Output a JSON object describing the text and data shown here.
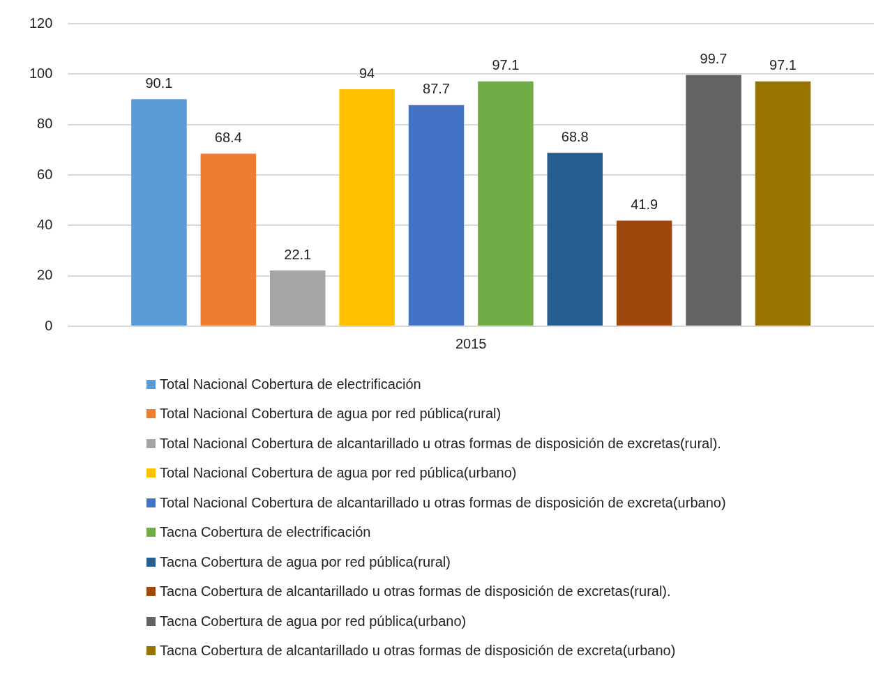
{
  "chart_data": {
    "type": "bar",
    "categories": [
      "2015"
    ],
    "series": [
      {
        "name": "Total Nacional Cobertura de electrificación",
        "color": "#5b9bd5",
        "values": [
          90.1
        ]
      },
      {
        "name": "Total Nacional Cobertura de agua por red pública(rural)",
        "color": "#ed7d31",
        "values": [
          68.4
        ]
      },
      {
        "name": "Total Nacional Cobertura de alcantarillado u otras formas de disposición de excretas(rural).",
        "color": "#a5a5a5",
        "values": [
          22.1
        ]
      },
      {
        "name": "Total Nacional Cobertura de agua por red pública(urbano)",
        "color": "#ffc000",
        "values": [
          94
        ]
      },
      {
        "name": "Total Nacional Cobertura de alcantarillado u otras formas de disposición de excreta(urbano)",
        "color": "#4472c4",
        "values": [
          87.7
        ]
      },
      {
        "name": "Tacna Cobertura de electrificación",
        "color": "#70ad47",
        "values": [
          97.1
        ]
      },
      {
        "name": "Tacna Cobertura de agua por red pública(rural)",
        "color": "#255e91",
        "values": [
          68.8
        ]
      },
      {
        "name": "Tacna Cobertura de alcantarillado u otras formas de disposición de excretas(rural).",
        "color": "#9e480e",
        "values": [
          41.9
        ]
      },
      {
        "name": "Tacna Cobertura de agua por red pública(urbano)",
        "color": "#636363",
        "values": [
          99.7
        ]
      },
      {
        "name": "Tacna Cobertura de alcantarillado u otras formas de disposición de excreta(urbano)",
        "color": "#997300",
        "values": [
          97.1
        ]
      }
    ],
    "ylim": [
      0,
      120
    ],
    "yticks": [
      0,
      20,
      40,
      60,
      80,
      100,
      120
    ],
    "grid": "y",
    "legend": "bottom",
    "data_labels": true
  }
}
